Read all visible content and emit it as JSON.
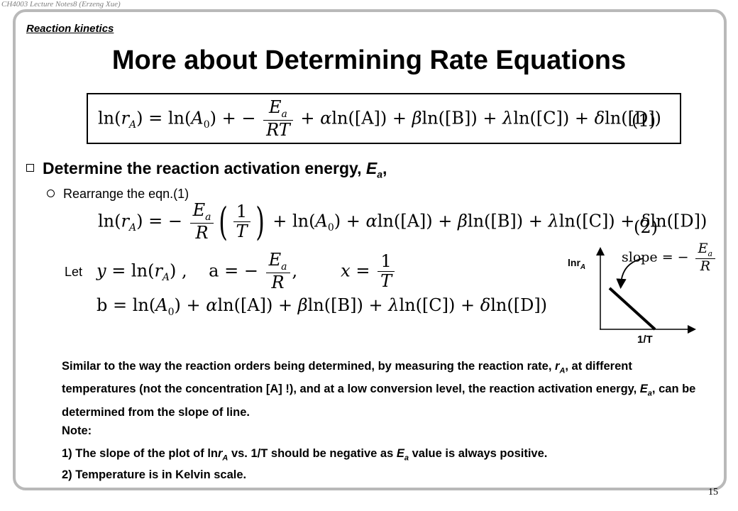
{
  "header": "CH4003 Lecture Notes8 (Erzeng Xue)",
  "section": "Reaction kinetics",
  "title": "More about Determining Rate Equations",
  "page_number": "15",
  "eq_number_1": "(1)",
  "eq_number_2": "(2)",
  "bullet1": "Determine the reaction activation energy, ",
  "bullet1_var": "E",
  "bullet1_sub": "a",
  "bullet1_end": ",",
  "bullet2": "Rearrange the eqn.(1)",
  "let_label": "Let",
  "graph": {
    "ylabel": "lnr",
    "ylabel_sub": "A",
    "xlabel": "1/T",
    "slope_label": "slope"
  },
  "para1": {
    "t1": "Similar to the way the reaction orders being determined, by measuring the reaction rate, ",
    "v1": "r",
    "s1": "A",
    "t2": ", at different temperatures (not the concentration [A] !), and at a low conversion level, the reaction activation energy, ",
    "v2": "E",
    "s2": "a",
    "t3": ", can be determined from the slope of line."
  },
  "note": "Note:",
  "note1": {
    "t1": "1) The slope of the plot of ln",
    "v1": "r",
    "s1": "A",
    "t2": " vs. 1/T should be negative as ",
    "v2": "E",
    "s2": "a",
    "t3": " value is always positive."
  },
  "note2": "2) Temperature is in Kelvin scale."
}
